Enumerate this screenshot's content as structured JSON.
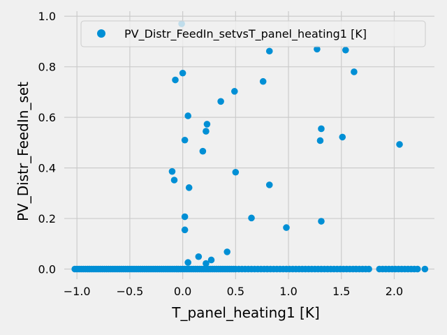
{
  "chart_data": {
    "type": "scatter",
    "xlabel": "T_panel_heating1 [K]",
    "ylabel": "PV_Distr_FeedIn_set",
    "xlim": [
      -1.12,
      2.38
    ],
    "ylim": [
      -0.04,
      1.02
    ],
    "xticks": [
      -1.0,
      -0.5,
      0.0,
      0.5,
      1.0,
      1.5,
      2.0
    ],
    "xtick_labels": [
      "−1.0",
      "−0.5",
      "0.0",
      "0.5",
      "1.0",
      "1.5",
      "2.0"
    ],
    "yticks": [
      0.0,
      0.2,
      0.4,
      0.6,
      0.8,
      1.0
    ],
    "ytick_labels": [
      "0.0",
      "0.2",
      "0.4",
      "0.6",
      "0.8",
      "1.0"
    ],
    "grid": true,
    "legend": {
      "position": "top-right"
    },
    "series": [
      {
        "name": "PV_Distr_FeedIn_setvsT_panel_heating1 [K]",
        "color": "#008fd5",
        "points": [
          [
            -0.01,
            0.97
          ],
          [
            0.0,
            0.775
          ],
          [
            -0.07,
            0.748
          ],
          [
            0.82,
            0.862
          ],
          [
            1.27,
            0.87
          ],
          [
            1.54,
            0.866
          ],
          [
            1.62,
            0.78
          ],
          [
            0.76,
            0.742
          ],
          [
            0.49,
            0.703
          ],
          [
            0.36,
            0.663
          ],
          [
            0.05,
            0.606
          ],
          [
            0.23,
            0.573
          ],
          [
            0.22,
            0.545
          ],
          [
            1.31,
            0.555
          ],
          [
            0.02,
            0.51
          ],
          [
            1.3,
            0.508
          ],
          [
            1.51,
            0.522
          ],
          [
            2.05,
            0.493
          ],
          [
            0.19,
            0.466
          ],
          [
            -0.1,
            0.386
          ],
          [
            0.5,
            0.383
          ],
          [
            -0.08,
            0.352
          ],
          [
            0.06,
            0.322
          ],
          [
            0.82,
            0.333
          ],
          [
            0.02,
            0.207
          ],
          [
            0.65,
            0.202
          ],
          [
            0.98,
            0.164
          ],
          [
            1.31,
            0.189
          ],
          [
            0.02,
            0.155
          ],
          [
            0.42,
            0.068
          ],
          [
            0.15,
            0.049
          ],
          [
            0.27,
            0.036
          ],
          [
            0.05,
            0.026
          ],
          [
            0.22,
            0.022
          ],
          [
            -1.02,
            0.0
          ],
          [
            -1.0,
            0.0
          ],
          [
            -0.98,
            0.0
          ],
          [
            -0.96,
            0.0
          ],
          [
            -0.94,
            0.0
          ],
          [
            -0.92,
            0.0
          ],
          [
            -0.9,
            0.0
          ],
          [
            -0.88,
            0.0
          ],
          [
            -0.86,
            0.0
          ],
          [
            -0.84,
            0.0
          ],
          [
            -0.82,
            0.0
          ],
          [
            -0.8,
            0.0
          ],
          [
            -0.78,
            0.0
          ],
          [
            -0.76,
            0.0
          ],
          [
            -0.74,
            0.0
          ],
          [
            -0.72,
            0.0
          ],
          [
            -0.7,
            0.0
          ],
          [
            -0.68,
            0.0
          ],
          [
            -0.66,
            0.0
          ],
          [
            -0.64,
            0.0
          ],
          [
            -0.62,
            0.0
          ],
          [
            -0.6,
            0.0
          ],
          [
            -0.58,
            0.0
          ],
          [
            -0.56,
            0.0
          ],
          [
            -0.54,
            0.0
          ],
          [
            -0.52,
            0.0
          ],
          [
            -0.5,
            0.0
          ],
          [
            -0.48,
            0.0
          ],
          [
            -0.46,
            0.0
          ],
          [
            -0.44,
            0.0
          ],
          [
            -0.42,
            0.0
          ],
          [
            -0.4,
            0.0
          ],
          [
            -0.38,
            0.0
          ],
          [
            -0.36,
            0.0
          ],
          [
            -0.34,
            0.0
          ],
          [
            -0.32,
            0.0
          ],
          [
            -0.3,
            0.0
          ],
          [
            -0.28,
            0.0
          ],
          [
            -0.26,
            0.0
          ],
          [
            -0.24,
            0.0
          ],
          [
            -0.22,
            0.0
          ],
          [
            -0.2,
            0.0
          ],
          [
            -0.18,
            0.0
          ],
          [
            -0.16,
            0.0
          ],
          [
            -0.14,
            0.0
          ],
          [
            -0.12,
            0.0
          ],
          [
            -0.1,
            0.0
          ],
          [
            -0.08,
            0.0
          ],
          [
            -0.06,
            0.0
          ],
          [
            -0.04,
            0.0
          ],
          [
            -0.02,
            0.0
          ],
          [
            0.0,
            0.0
          ],
          [
            0.02,
            0.0
          ],
          [
            0.04,
            0.0
          ],
          [
            0.06,
            0.0
          ],
          [
            0.08,
            0.0
          ],
          [
            0.1,
            0.0
          ],
          [
            0.12,
            0.0
          ],
          [
            0.14,
            0.0
          ],
          [
            0.16,
            0.0
          ],
          [
            0.18,
            0.0
          ],
          [
            0.2,
            0.0
          ],
          [
            0.22,
            0.0
          ],
          [
            0.24,
            0.0
          ],
          [
            0.26,
            0.0
          ],
          [
            0.28,
            0.0
          ],
          [
            0.3,
            0.0
          ],
          [
            0.32,
            0.0
          ],
          [
            0.34,
            0.0
          ],
          [
            0.36,
            0.0
          ],
          [
            0.38,
            0.0
          ],
          [
            0.4,
            0.0
          ],
          [
            0.42,
            0.0
          ],
          [
            0.44,
            0.0
          ],
          [
            0.46,
            0.0
          ],
          [
            0.48,
            0.0
          ],
          [
            0.5,
            0.0
          ],
          [
            0.53,
            0.0
          ],
          [
            0.56,
            0.0
          ],
          [
            0.59,
            0.0
          ],
          [
            0.62,
            0.0
          ],
          [
            0.65,
            0.0
          ],
          [
            0.68,
            0.0
          ],
          [
            0.71,
            0.0
          ],
          [
            0.74,
            0.0
          ],
          [
            0.77,
            0.0
          ],
          [
            0.8,
            0.0
          ],
          [
            0.83,
            0.0
          ],
          [
            0.86,
            0.0
          ],
          [
            0.89,
            0.0
          ],
          [
            0.92,
            0.0
          ],
          [
            0.95,
            0.0
          ],
          [
            0.98,
            0.0
          ],
          [
            1.01,
            0.0
          ],
          [
            1.04,
            0.0
          ],
          [
            1.07,
            0.0
          ],
          [
            1.1,
            0.0
          ],
          [
            1.13,
            0.0
          ],
          [
            1.16,
            0.0
          ],
          [
            1.19,
            0.0
          ],
          [
            1.22,
            0.0
          ],
          [
            1.25,
            0.0
          ],
          [
            1.28,
            0.0
          ],
          [
            1.31,
            0.0
          ],
          [
            1.34,
            0.0
          ],
          [
            1.37,
            0.0
          ],
          [
            1.4,
            0.0
          ],
          [
            1.43,
            0.0
          ],
          [
            1.46,
            0.0
          ],
          [
            1.49,
            0.0
          ],
          [
            1.52,
            0.0
          ],
          [
            1.55,
            0.0
          ],
          [
            1.58,
            0.0
          ],
          [
            1.61,
            0.0
          ],
          [
            1.64,
            0.0
          ],
          [
            1.67,
            0.0
          ],
          [
            1.7,
            0.0
          ],
          [
            1.73,
            0.0
          ],
          [
            1.76,
            0.0
          ],
          [
            1.86,
            0.0
          ],
          [
            1.89,
            0.0
          ],
          [
            1.92,
            0.0
          ],
          [
            1.95,
            0.0
          ],
          [
            1.98,
            0.0
          ],
          [
            2.01,
            0.0
          ],
          [
            2.04,
            0.0
          ],
          [
            2.07,
            0.0
          ],
          [
            2.1,
            0.0
          ],
          [
            2.13,
            0.0
          ],
          [
            2.16,
            0.0
          ],
          [
            2.19,
            0.0
          ],
          [
            2.22,
            0.0
          ],
          [
            2.29,
            0.0
          ]
        ]
      }
    ]
  }
}
